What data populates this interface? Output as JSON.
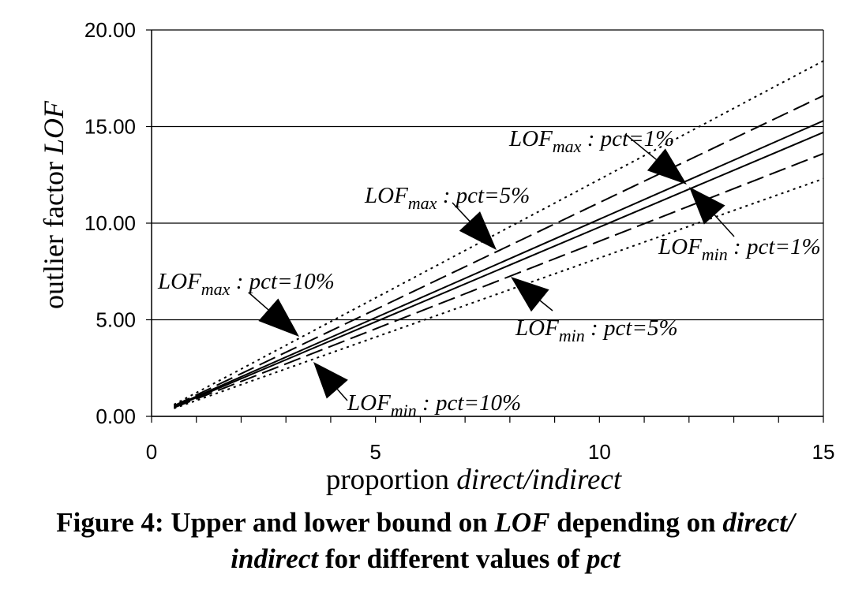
{
  "chart_data": {
    "type": "line",
    "xlabel": "proportion direct/indirect",
    "ylabel": "outlier factor LOF",
    "xlim": [
      0,
      15
    ],
    "ylim": [
      0,
      20
    ],
    "x_ticks": [
      "0",
      "5",
      "10",
      "15"
    ],
    "y_ticks": [
      "0.00",
      "5.00",
      "10.00",
      "15.00",
      "20.00"
    ],
    "grid": "horizontal",
    "x": [
      0.5,
      15
    ],
    "series": [
      {
        "name": "LOFmax : pct=1%",
        "style": "solid",
        "values": [
          0.52,
          15.3
        ]
      },
      {
        "name": "LOFmin : pct=1%",
        "style": "solid",
        "values": [
          0.48,
          14.7
        ]
      },
      {
        "name": "LOFmax : pct=5%",
        "style": "dashed",
        "values": [
          0.55,
          16.6
        ]
      },
      {
        "name": "LOFmin : pct=5%",
        "style": "dashed",
        "values": [
          0.45,
          13.6
        ]
      },
      {
        "name": "LOFmax : pct=10%",
        "style": "dotted",
        "values": [
          0.61,
          18.4
        ]
      },
      {
        "name": "LOFmin : pct=10%",
        "style": "dotted",
        "values": [
          0.41,
          12.3
        ]
      }
    ],
    "annotations": [
      {
        "main": "LOF",
        "sub": "max",
        "rest": " : pct=1%"
      },
      {
        "main": "LOF",
        "sub": "min",
        "rest": " : pct=1%"
      },
      {
        "main": "LOF",
        "sub": "max",
        "rest": " : pct=5%"
      },
      {
        "main": "LOF",
        "sub": "min",
        "rest": " : pct=5%"
      },
      {
        "main": "LOF",
        "sub": "max",
        "rest": " : pct=10%"
      },
      {
        "main": "LOF",
        "sub": "min",
        "rest": " : pct=10%"
      }
    ]
  },
  "axis_text": {
    "y_plain": "outlier factor ",
    "y_italic": "LOF",
    "x_plain": "proportion ",
    "x_italic": "direct/indirect"
  },
  "caption": {
    "p1": "Figure 4: Upper and lower bound on ",
    "i1": "LOF",
    "p2": " depending on ",
    "i2": "direct/",
    "i3": "indirect",
    "p3": " for different values of ",
    "i4": "pct"
  }
}
